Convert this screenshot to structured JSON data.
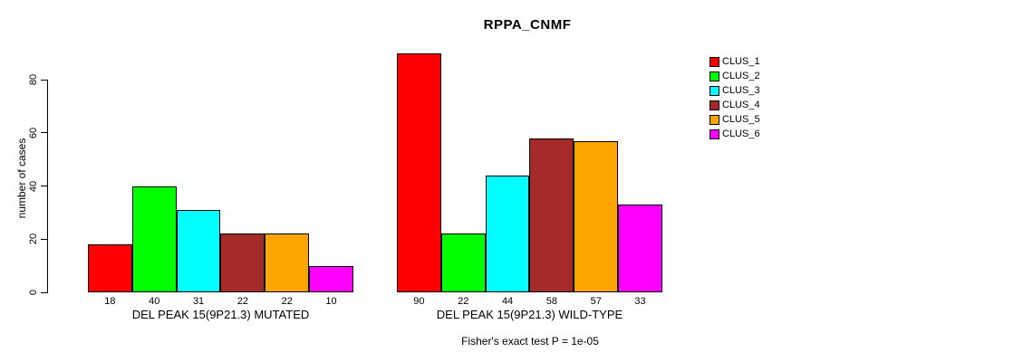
{
  "chart_data": {
    "type": "bar",
    "title": "RPPA_CNMF",
    "ylabel": "number of cases",
    "xlabel": "",
    "ylim": [
      0,
      80
    ],
    "yticks": [
      "0",
      "20",
      "40",
      "60",
      "80"
    ],
    "grid": false,
    "legend_position": "right",
    "series_names": [
      "CLUS_1",
      "CLUS_2",
      "CLUS_3",
      "CLUS_4",
      "CLUS_5",
      "CLUS_6"
    ],
    "series_colors": [
      "#ff0000",
      "#00ff00",
      "#00ffff",
      "#a52a2a",
      "#ffa500",
      "#ff00ff"
    ],
    "groups": [
      {
        "label": "DEL PEAK 15(9P21.3) MUTATED",
        "values": [
          18,
          40,
          31,
          22,
          22,
          10
        ],
        "value_labels": [
          "18",
          "40",
          "31",
          "22",
          "22",
          "10"
        ]
      },
      {
        "label": "DEL PEAK 15(9P21.3) WILD-TYPE",
        "values": [
          90,
          22,
          44,
          58,
          57,
          33
        ],
        "value_labels": [
          "90",
          "22",
          "44",
          "58",
          "57",
          "33"
        ]
      }
    ],
    "annotation": "Fisher's exact test P = 1e-05",
    "background_color": "#ffffff",
    "text_color": "#000000"
  }
}
